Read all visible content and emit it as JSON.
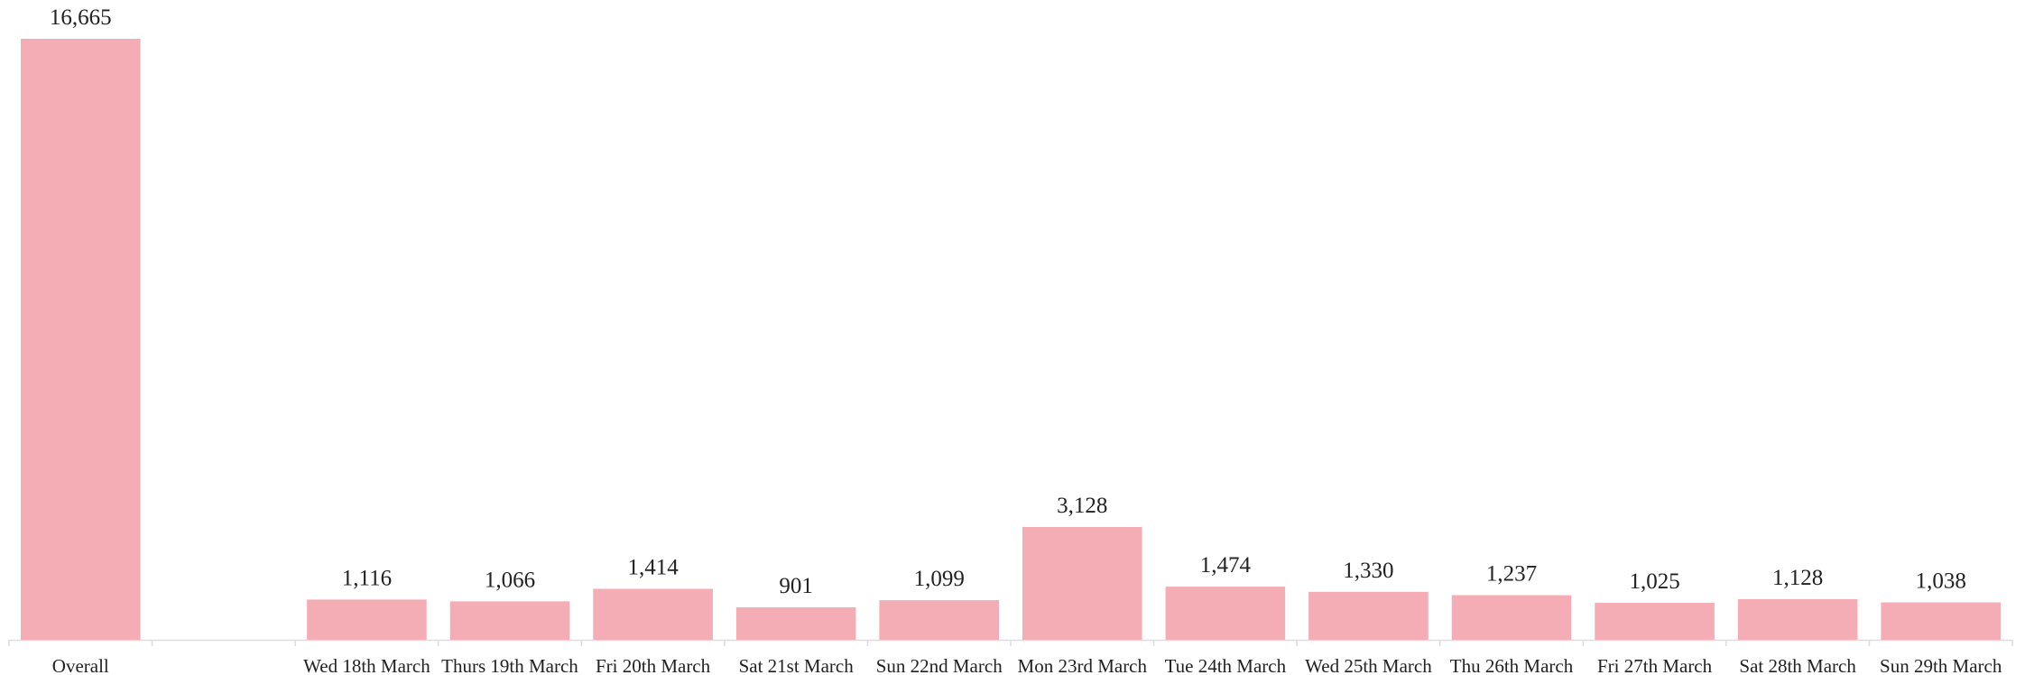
{
  "chart_data": {
    "type": "bar",
    "categories": [
      "Overall",
      null,
      "Wed 18th March",
      "Thurs 19th March",
      "Fri 20th March",
      "Sat 21st March",
      "Sun 22nd March",
      "Mon 23rd March",
      "Tue 24th March",
      "Wed 25th March",
      "Thu 26th March",
      "Fri 27th March",
      "Sat 28th March",
      "Sun 29th March"
    ],
    "values": [
      16665,
      null,
      1116,
      1066,
      1414,
      901,
      1099,
      3128,
      1474,
      1330,
      1237,
      1025,
      1128,
      1038
    ],
    "value_labels": [
      "16,665",
      null,
      "1,116",
      "1,066",
      "1,414",
      "901",
      "1,099",
      "3,128",
      "1,474",
      "1,330",
      "1,237",
      "1,025",
      "1,128",
      "1,038"
    ],
    "color": "#f4adb4"
  }
}
